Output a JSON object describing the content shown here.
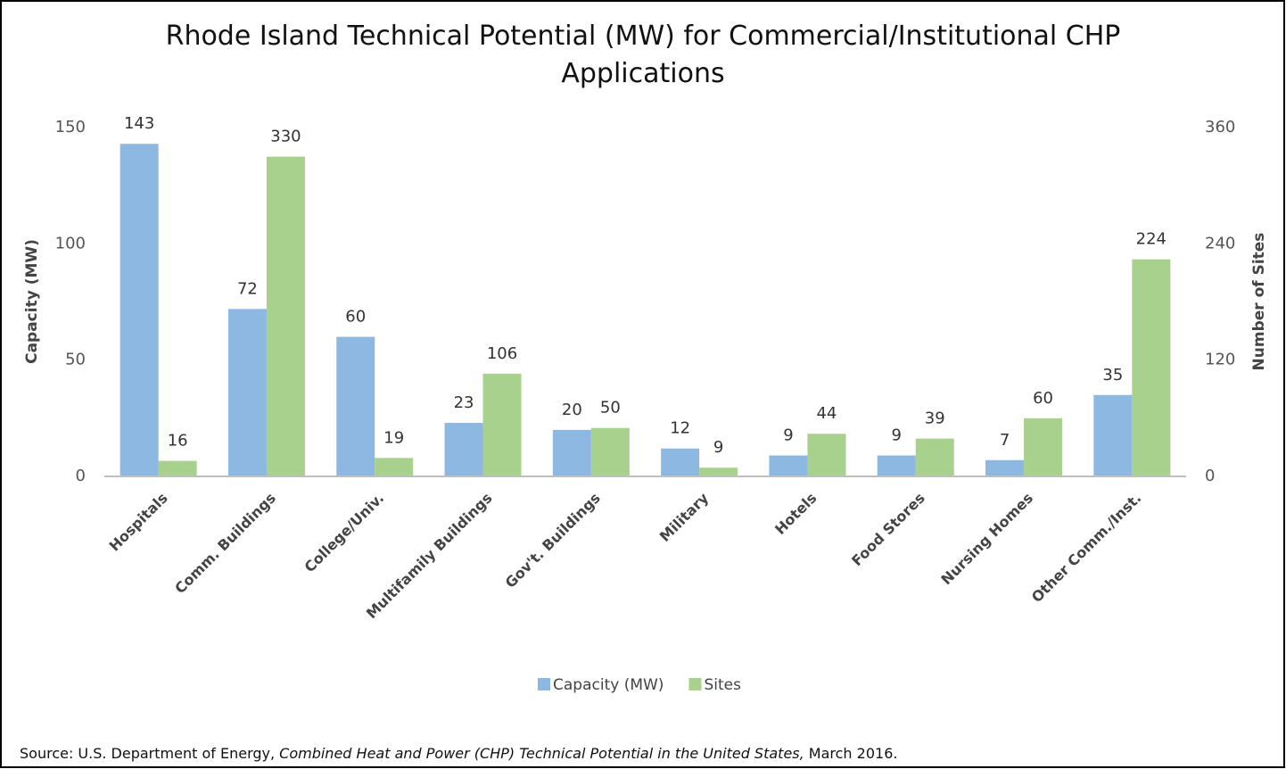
{
  "chart_data": {
    "type": "bar",
    "title": "Rhode Island Technical Potential (MW) for Commercial/Institutional CHP Applications",
    "categories": [
      "Hospitals",
      "Comm. Buildings",
      "College/Univ.",
      "Multifamily Buildings",
      "Gov't. Buildings",
      "Military",
      "Hotels",
      "Food Stores",
      "Nursing Homes",
      "Other Comm./Inst."
    ],
    "series": [
      {
        "name": "Capacity (MW)",
        "color": "#8db8e2",
        "values": [
          143,
          72,
          60,
          23,
          20,
          12,
          9,
          9,
          7,
          35
        ]
      },
      {
        "name": "Sites",
        "color": "#a9d18e",
        "axis": "y2",
        "values": [
          16,
          330,
          19,
          106,
          50,
          9,
          44,
          39,
          60,
          224
        ]
      }
    ],
    "ylabel": "Capacity (MW)",
    "y2label": "Number of Sites",
    "ylim": [
      0,
      150
    ],
    "yticks": [
      0,
      50,
      100,
      150
    ],
    "y2lim": [
      0,
      360
    ],
    "y2ticks": [
      0,
      120,
      240,
      360
    ],
    "grid": false,
    "legend": "bottom",
    "source": [
      "Source: U.S. Department of Energy, ",
      "Combined Heat and Power (CHP) Technical Potential in the United States,",
      " March 2016."
    ]
  }
}
